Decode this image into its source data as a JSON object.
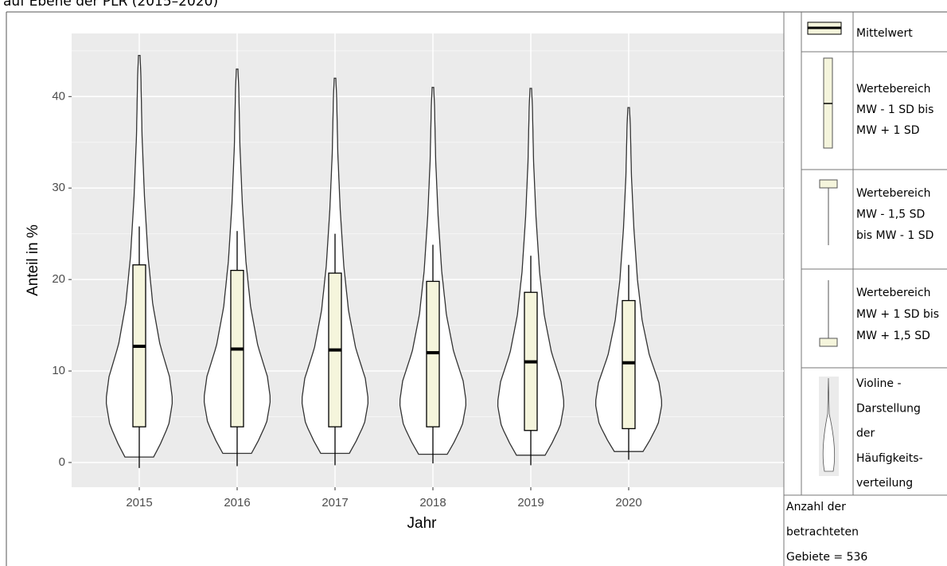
{
  "chart_data": {
    "type": "violin",
    "title": "auf Ebene der PLR (2015–2020)",
    "x_label": "Jahr",
    "y_label": "Anteil in %",
    "categories": [
      "2015",
      "2016",
      "2017",
      "2018",
      "2019",
      "2020"
    ],
    "mean": [
      12.7,
      12.4,
      12.3,
      12.0,
      11.0,
      10.9
    ],
    "sd1_low": [
      3.9,
      3.9,
      3.9,
      3.9,
      3.5,
      3.7
    ],
    "sd1_high": [
      21.6,
      21.0,
      20.7,
      19.8,
      18.6,
      17.7
    ],
    "sd15_low": [
      -0.6,
      -0.4,
      -0.3,
      -0.1,
      -0.3,
      0.3
    ],
    "sd15_high": [
      25.8,
      25.3,
      25.0,
      23.8,
      22.6,
      21.6
    ],
    "violin_min": [
      0.6,
      1.0,
      1.0,
      0.9,
      0.8,
      1.2
    ],
    "violin_max": [
      44.5,
      43.0,
      42.0,
      41.0,
      40.9,
      38.8
    ],
    "box_color": "#f5f5dc",
    "ylim": [
      -2.7,
      46.9
    ],
    "yticks": [
      0,
      10,
      20,
      30,
      40
    ],
    "grid": true,
    "legend": {
      "entries": [
        [
          "Mittelwert"
        ],
        [
          "Wertebereich",
          "MW - 1 SD bis",
          "MW + 1 SD"
        ],
        [
          "Wertebereich",
          "MW - 1,5 SD",
          "bis MW - 1 SD"
        ],
        [
          "Wertebereich",
          "MW + 1 SD bis",
          "MW + 1,5 SD"
        ],
        [
          "Violine -",
          "Darstellung",
          "der",
          "Häufigkeits-",
          "verteilung"
        ]
      ],
      "note": [
        "Anzahl der",
        "betrachteten",
        "Gebiete = 536"
      ]
    }
  }
}
